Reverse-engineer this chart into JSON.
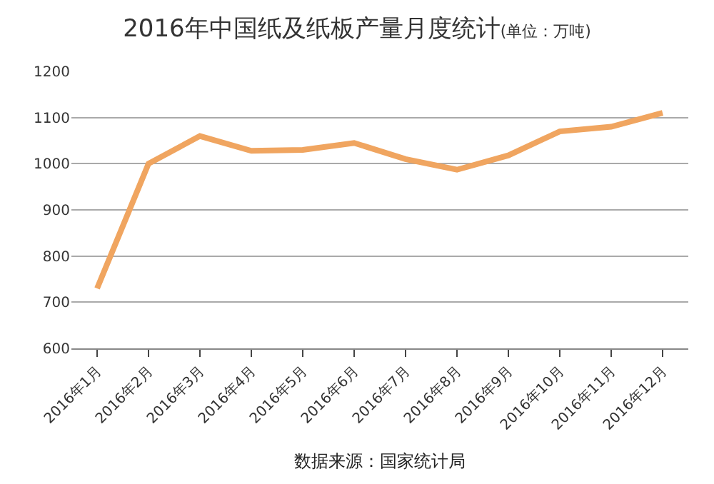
{
  "chart_data": {
    "type": "line",
    "title": "2016年中国纸及纸板产量月度统计",
    "subtitle": "(单位：万吨)",
    "categories": [
      "2016年1月",
      "2016年2月",
      "2016年3月",
      "2016年4月",
      "2016年5月",
      "2016年6月",
      "2016年7月",
      "2016年8月",
      "2016年9月",
      "2016年10月",
      "2016年11月",
      "2016年12月"
    ],
    "series": [
      {
        "color": "#f0a560",
        "values": [
          730,
          1000,
          1060,
          1028,
          1030,
          1045,
          1010,
          987,
          1018,
          1070,
          1080,
          1110
        ]
      }
    ],
    "ylim": [
      600,
      1200
    ],
    "yticks": [
      600,
      700,
      800,
      900,
      1000,
      1100,
      1200
    ],
    "grid": "y",
    "marker": "none",
    "line_style": "solid",
    "annotations": [
      "数据来源：国家统计局"
    ]
  }
}
